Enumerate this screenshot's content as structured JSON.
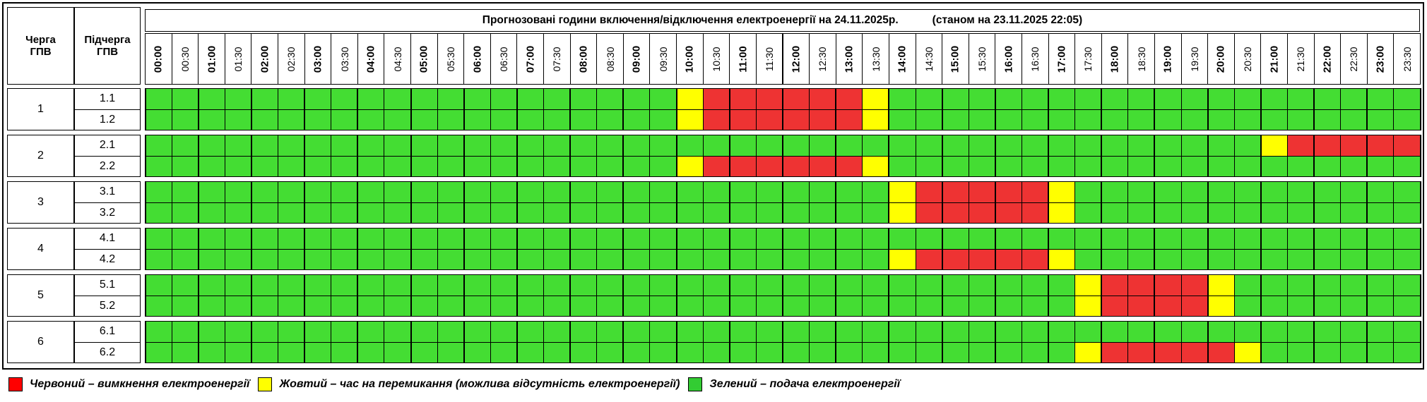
{
  "header": {
    "queue_label": "Черга ГПВ",
    "subqueue_label": "Підчерга ГПВ",
    "title": "Прогнозовані години включення/відключення електроенергії на 24.11.2025р.",
    "status": "(станом на 23.11.2025 22:05)"
  },
  "time_slots": [
    "00:00",
    "00:30",
    "01:00",
    "01:30",
    "02:00",
    "02:30",
    "03:00",
    "03:30",
    "04:00",
    "04:30",
    "05:00",
    "05:30",
    "06:00",
    "06:30",
    "07:00",
    "07:30",
    "08:00",
    "08:30",
    "09:00",
    "09:30",
    "10:00",
    "10:30",
    "11:00",
    "11:30",
    "12:00",
    "12:30",
    "13:00",
    "13:30",
    "14:00",
    "14:30",
    "15:00",
    "15:30",
    "16:00",
    "16:30",
    "17:00",
    "17:30",
    "18:00",
    "18:30",
    "19:00",
    "19:30",
    "20:00",
    "20:30",
    "21:00",
    "21:30",
    "22:00",
    "22:30",
    "23:00",
    "23:30"
  ],
  "colors": {
    "R": "#ee3333",
    "Y": "#ffff00",
    "G": "#44dd33"
  },
  "groups": [
    {
      "label": "1",
      "subs": [
        {
          "label": "1.1",
          "states": "GGGGGGGGGGGGGGGGGGGGYRRRRRRYGGGGGGGGGGGGGGGGGGGG"
        },
        {
          "label": "1.2",
          "states": "GGGGGGGGGGGGGGGGGGGGYRRRRRRYGGGGGGGGGGGGGGGGGGGG"
        }
      ]
    },
    {
      "label": "2",
      "subs": [
        {
          "label": "2.1",
          "states": "GGGGGGGGGGGGGGGGGGGGGGGGGGGGGGGGGGGGGGGGGGYRRRRR"
        },
        {
          "label": "2.2",
          "states": "GGGGGGGGGGGGGGGGGGGGYRRRRRRYGGGGGGGGGGGGGGGGGGGG"
        }
      ]
    },
    {
      "label": "3",
      "subs": [
        {
          "label": "3.1",
          "states": "GGGGGGGGGGGGGGGGGGGGGGGGGGGGYRRRRRYGGGGGGGGGGGGG"
        },
        {
          "label": "3.2",
          "states": "GGGGGGGGGGGGGGGGGGGGGGGGGGGGYRRRRRYGGGGGGGGGGGGG"
        }
      ]
    },
    {
      "label": "4",
      "subs": [
        {
          "label": "4.1",
          "states": "GGGGGGGGGGGGGGGGGGGGGGGGGGGGGGGGGGGGGGGGGGGGGGGG"
        },
        {
          "label": "4.2",
          "states": "GGGGGGGGGGGGGGGGGGGGGGGGGGGGYRRRRRYGGGGGGGGGGGGG"
        }
      ]
    },
    {
      "label": "5",
      "subs": [
        {
          "label": "5.1",
          "states": "GGGGGGGGGGGGGGGGGGGGGGGGGGGGGGGGGGGYRRRRYGGGGGGG"
        },
        {
          "label": "5.2",
          "states": "GGGGGGGGGGGGGGGGGGGGGGGGGGGGGGGGGGGYRRRRYGGGGGGG"
        }
      ]
    },
    {
      "label": "6",
      "subs": [
        {
          "label": "6.1",
          "states": "GGGGGGGGGGGGGGGGGGGGGGGGGGGGGGGGGGGGGGGGGGGGGGGG"
        },
        {
          "label": "6.2",
          "states": "GGGGGGGGGGGGGGGGGGGGGGGGGGGGGGGGGGGYRRRRRYGGGGGG"
        }
      ]
    }
  ],
  "legend": {
    "red": "Червоний – вимкнення електроенергії",
    "yellow": "Жовтий – час на перемикання (можлива відсутність електроенергії)",
    "green": "Зелений – подача електроенергії"
  }
}
